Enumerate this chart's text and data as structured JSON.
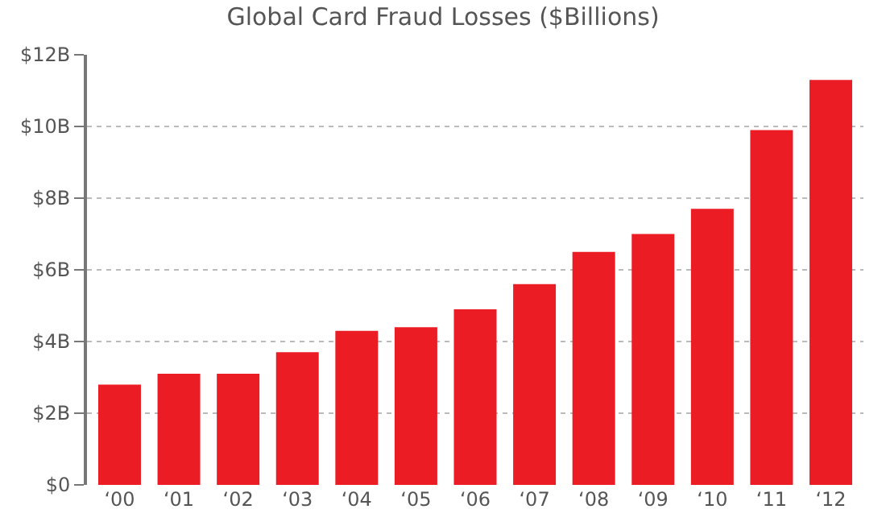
{
  "chart_data": {
    "type": "bar",
    "title": "Global Card Fraud Losses ($Billions)",
    "categories": [
      "‘00",
      "‘01",
      "‘02",
      "‘03",
      "‘04",
      "‘05",
      "‘06",
      "‘07",
      "‘08",
      "‘09",
      "‘10",
      "‘11",
      "‘12"
    ],
    "values": [
      2.8,
      3.1,
      3.1,
      3.7,
      4.3,
      4.4,
      4.9,
      5.6,
      6.5,
      7.0,
      7.7,
      9.9,
      11.3
    ],
    "color": "#ec1c24",
    "ylim": [
      0,
      12
    ],
    "yticks": [
      {
        "value": 0,
        "label": "$0"
      },
      {
        "value": 2,
        "label": "$2B"
      },
      {
        "value": 4,
        "label": "$4B"
      },
      {
        "value": 6,
        "label": "$6B"
      },
      {
        "value": 8,
        "label": "$8B"
      },
      {
        "value": 10,
        "label": "$10B"
      },
      {
        "value": 12,
        "label": "$12B"
      }
    ],
    "grid": "y"
  }
}
